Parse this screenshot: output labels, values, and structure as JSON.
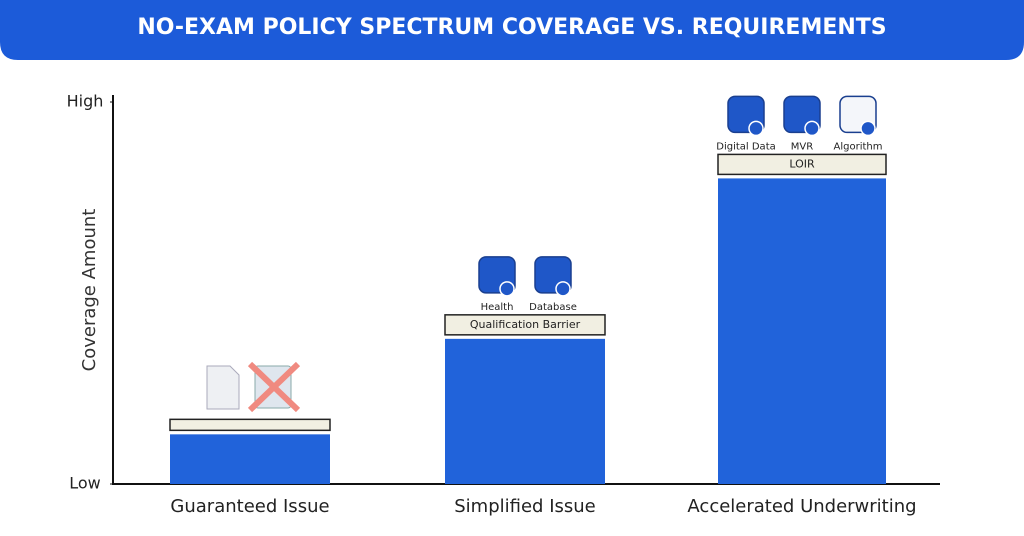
{
  "chart_data": {
    "type": "bar",
    "title": "NO-EXAM POLICY SPECTRUM COVERAGE VS. REQUIREMENTS",
    "y_label": "Coverage Amount",
    "categories": [
      "Guaranteed Issue",
      "Simplified Issue",
      "Accelerated Underwriting"
    ],
    "values": [
      13,
      38,
      80
    ],
    "color": "#2163da",
    "ylim": [
      0,
      100
    ],
    "yticks": [
      {
        "value": 0,
        "label": "Low"
      },
      {
        "value": 100,
        "label": "High"
      }
    ],
    "bar_labels": [
      null,
      "Qualification Barrier",
      "LOIR"
    ],
    "icon_labels": [
      [],
      [
        "Health",
        "Database"
      ],
      [
        "Digital Data",
        "MVR",
        "Algorithm"
      ]
    ]
  }
}
